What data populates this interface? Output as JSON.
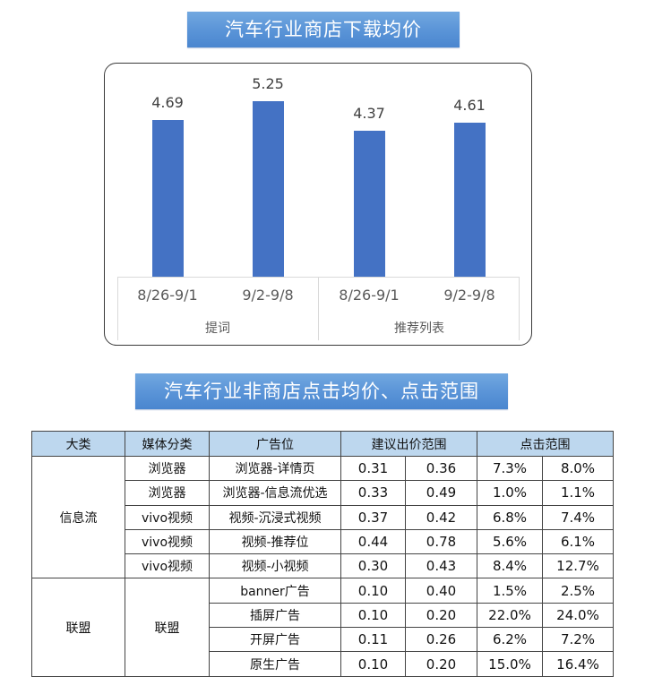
{
  "chart_title": "汽车行业商店下载均价",
  "table_title": "汽车行业非商店点击均价、点击范围",
  "chart_data": {
    "type": "bar",
    "title": "汽车行业商店下载均价",
    "categories": [
      "8/26-9/1",
      "9/2-9/8",
      "8/26-9/1",
      "9/2-9/8"
    ],
    "groups": [
      {
        "name": "提词",
        "categories": [
          "8/26-9/1",
          "9/2-9/8"
        ],
        "values": [
          4.69,
          5.25
        ]
      },
      {
        "name": "推荐列表",
        "categories": [
          "8/26-9/1",
          "9/2-9/8"
        ],
        "values": [
          4.37,
          4.61
        ]
      }
    ],
    "values": [
      4.69,
      5.25,
      4.37,
      4.61
    ],
    "value_labels": [
      "4.69",
      "5.25",
      "4.37",
      "4.61"
    ],
    "group_labels": [
      "提词",
      "推荐列表"
    ],
    "xlabel": "",
    "ylabel": "",
    "ylim": [
      0,
      6
    ],
    "grid": false,
    "legend": "none",
    "bar_color": "#4472c4"
  },
  "table": {
    "headers": [
      "大类",
      "媒体分类",
      "广告位",
      "建议出价范围",
      "点击范围"
    ],
    "groups": [
      {
        "category": "信息流",
        "rows": [
          {
            "media": "浏览器",
            "slot": "浏览器-详情页",
            "bid_min": "0.31",
            "bid_max": "0.36",
            "ctr_min": "7.3%",
            "ctr_max": "8.0%"
          },
          {
            "media": "浏览器",
            "slot": "浏览器-信息流优选",
            "bid_min": "0.33",
            "bid_max": "0.49",
            "ctr_min": "1.0%",
            "ctr_max": "1.1%"
          },
          {
            "media": "vivo视频",
            "slot": "视频-沉浸式视频",
            "bid_min": "0.37",
            "bid_max": "0.42",
            "ctr_min": "6.8%",
            "ctr_max": "7.4%"
          },
          {
            "media": "vivo视频",
            "slot": "视频-推荐位",
            "bid_min": "0.44",
            "bid_max": "0.78",
            "ctr_min": "5.6%",
            "ctr_max": "6.1%"
          },
          {
            "media": "vivo视频",
            "slot": "视频-小视频",
            "bid_min": "0.30",
            "bid_max": "0.43",
            "ctr_min": "8.4%",
            "ctr_max": "12.7%"
          }
        ]
      },
      {
        "category": "联盟",
        "media": "联盟",
        "rows": [
          {
            "slot": "banner广告",
            "bid_min": "0.10",
            "bid_max": "0.40",
            "ctr_min": "1.5%",
            "ctr_max": "2.5%"
          },
          {
            "slot": "插屏广告",
            "bid_min": "0.10",
            "bid_max": "0.20",
            "ctr_min": "22.0%",
            "ctr_max": "24.0%"
          },
          {
            "slot": "开屏广告",
            "bid_min": "0.11",
            "bid_max": "0.26",
            "ctr_min": "6.2%",
            "ctr_max": "7.2%"
          },
          {
            "slot": "原生广告",
            "bid_min": "0.10",
            "bid_max": "0.20",
            "ctr_min": "15.0%",
            "ctr_max": "16.4%"
          }
        ]
      }
    ]
  },
  "colors": {
    "banner_top": "#72a8e0",
    "banner_bottom": "#4a86cf",
    "bar": "#4472c4",
    "table_header_bg": "#bdd7ee"
  }
}
